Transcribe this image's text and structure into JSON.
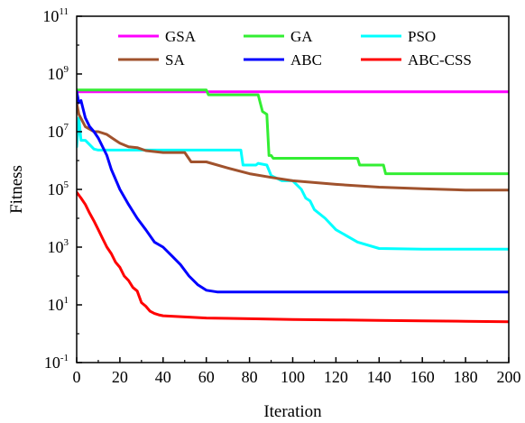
{
  "chart_data": {
    "type": "line",
    "xlabel": "Iteration",
    "ylabel": "Fitness",
    "xlim": [
      0,
      200
    ],
    "ylim_log10": [
      -1,
      11
    ],
    "yscale": "log",
    "x_ticks": [
      0,
      20,
      40,
      60,
      80,
      100,
      120,
      140,
      160,
      180,
      200
    ],
    "x_tick_labels": [
      "0",
      "20",
      "40",
      "60",
      "80",
      "100",
      "120",
      "140",
      "160",
      "180",
      "200"
    ],
    "y_tick_exponents": [
      -1,
      1,
      3,
      5,
      7,
      9,
      11
    ],
    "y_tick_labels": [
      {
        "base": "10",
        "exp": "-1"
      },
      {
        "base": "10",
        "exp": "1"
      },
      {
        "base": "10",
        "exp": "3"
      },
      {
        "base": "10",
        "exp": "5"
      },
      {
        "base": "10",
        "exp": "7"
      },
      {
        "base": "10",
        "exp": "9"
      },
      {
        "base": "10",
        "exp": "11"
      }
    ],
    "legend_position": "top",
    "series": [
      {
        "name": "GSA",
        "color": "#ff00ff",
        "x": [
          0,
          200
        ],
        "y": [
          240000000.0,
          240000000.0
        ]
      },
      {
        "name": "GA",
        "color": "#33ee33",
        "x": [
          0,
          60,
          61,
          84,
          86,
          88,
          89,
          90,
          91,
          130,
          131,
          142,
          143,
          200
        ],
        "y": [
          280000000.0,
          280000000.0,
          190000000.0,
          190000000.0,
          50000000.0,
          40000000.0,
          1500000.0,
          1500000.0,
          1200000.0,
          1200000.0,
          700000.0,
          700000.0,
          350000.0,
          350000.0
        ]
      },
      {
        "name": "PSO",
        "color": "#00ffff",
        "x": [
          0,
          1,
          2,
          4,
          8,
          10,
          20,
          30,
          40,
          60,
          76,
          77,
          83,
          84,
          88,
          90,
          95,
          100,
          104,
          106,
          108,
          110,
          115,
          120,
          130,
          140,
          160,
          180,
          200
        ],
        "y": [
          3000000.0,
          30000000.0,
          5000000.0,
          5000000.0,
          2500000.0,
          2300000.0,
          2300000.0,
          2300000.0,
          2300000.0,
          2300000.0,
          2300000.0,
          700000.0,
          700000.0,
          800000.0,
          700000.0,
          300000.0,
          200000.0,
          200000.0,
          100000.0,
          50000.0,
          40000.0,
          20000.0,
          10000.0,
          4000.0,
          1500.0,
          900.0,
          850.0,
          850.0,
          850.0
        ]
      },
      {
        "name": "SA",
        "color": "#a0522d",
        "x": [
          0,
          1,
          4,
          8,
          10,
          14,
          18,
          20,
          24,
          28,
          32,
          40,
          50,
          53,
          60,
          70,
          80,
          90,
          100,
          120,
          140,
          160,
          180,
          200
        ],
        "y": [
          100000000.0,
          40000000.0,
          15000000.0,
          10000000.0,
          10000000.0,
          8000000.0,
          5000000.0,
          4000000.0,
          3000000.0,
          2800000.0,
          2200000.0,
          1900000.0,
          1900000.0,
          900000.0,
          900000.0,
          550000.0,
          350000.0,
          260000.0,
          200000.0,
          150000.0,
          120000.0,
          105000.0,
          95000.0,
          95000.0
        ]
      },
      {
        "name": "ABC",
        "color": "#0000ff",
        "x": [
          0,
          1,
          2,
          4,
          6,
          8,
          10,
          14,
          16,
          20,
          24,
          28,
          32,
          36,
          40,
          44,
          48,
          52,
          56,
          60,
          65,
          70,
          80,
          100,
          120,
          140,
          160,
          180,
          200
        ],
        "y": [
          250000000.0,
          100000000.0,
          120000000.0,
          30000000.0,
          15000000.0,
          10000000.0,
          6000000.0,
          1500000.0,
          500000.0,
          100000.0,
          30000.0,
          10000.0,
          4000.0,
          1500.0,
          1000.0,
          500.0,
          250.0,
          100.0,
          50,
          32,
          28,
          28,
          28,
          28,
          28,
          28,
          28,
          28,
          28
        ]
      },
      {
        "name": "ABC-CSS",
        "color": "#ff0000",
        "x": [
          0,
          2,
          4,
          6,
          8,
          10,
          12,
          14,
          16,
          18,
          20,
          22,
          24,
          26,
          28,
          30,
          32,
          34,
          36,
          38,
          40,
          50,
          60,
          80,
          100,
          120,
          140,
          160,
          180,
          200
        ],
        "y": [
          80000.0,
          50000.0,
          30000.0,
          15000.0,
          8000.0,
          4000.0,
          2000.0,
          1000.0,
          600.0,
          300.0,
          200.0,
          100.0,
          70,
          40,
          30,
          12,
          9,
          6,
          5,
          4.5,
          4.2,
          3.8,
          3.5,
          3.3,
          3.1,
          3.0,
          2.9,
          2.8,
          2.7,
          2.6
        ]
      }
    ]
  }
}
